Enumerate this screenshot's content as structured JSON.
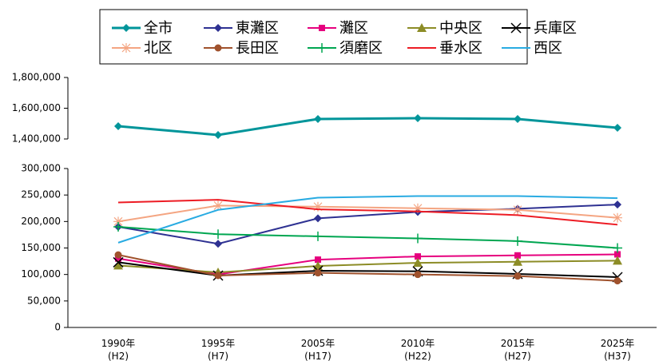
{
  "chart_data": [
    {
      "type": "line",
      "categories": [
        "1990年\n(H2)",
        "1995年\n(H7)",
        "2005年\n(H17)",
        "2010年\n(H22)",
        "2015年\n(H27)",
        "2025年\n(H37)"
      ],
      "ylim": [
        1400000,
        1800000
      ],
      "yticks": [
        {
          "value": 1400000,
          "label": "1,400,000"
        },
        {
          "value": 1600000,
          "label": "1,600,000"
        },
        {
          "value": 1800000,
          "label": "1,800,000"
        }
      ],
      "series": [
        {
          "name": "全市",
          "color": "#00959a",
          "marker": "diamond",
          "values": [
            1483000,
            1426000,
            1530000,
            1535000,
            1530000,
            1473000
          ]
        }
      ]
    },
    {
      "type": "line",
      "categories": [
        "1990年\n(H2)",
        "1995年\n(H7)",
        "2005年\n(H17)",
        "2010年\n(H22)",
        "2015年\n(H27)",
        "2025年\n(H37)"
      ],
      "ylim": [
        0,
        300000
      ],
      "yticks": [
        0,
        {
          "value": 50000,
          "label": "50,000"
        },
        {
          "value": 100000,
          "label": "100,000"
        },
        {
          "value": 150000,
          "label": "150,000"
        },
        {
          "value": 200000,
          "label": "200,000"
        },
        {
          "value": 250000,
          "label": "250,000"
        },
        {
          "value": 300000,
          "label": "300,000"
        }
      ],
      "series": [
        {
          "name": "東灘区",
          "color": "#2e3192",
          "marker": "diamond",
          "values": [
            190000,
            158000,
            206000,
            218000,
            224000,
            232000
          ]
        },
        {
          "name": "灘区",
          "color": "#e6007e",
          "marker": "square",
          "values": [
            130000,
            100000,
            128000,
            134000,
            136000,
            138000
          ]
        },
        {
          "name": "中央区",
          "color": "#8c8c26",
          "marker": "triangle",
          "values": [
            117000,
            104000,
            116000,
            122000,
            124000,
            126000
          ]
        },
        {
          "name": "兵庫区",
          "color": "#000000",
          "marker": "x",
          "values": [
            123000,
            98000,
            107000,
            106000,
            101000,
            95000
          ]
        },
        {
          "name": "北区",
          "color": "#f4a582",
          "marker": "asterisk",
          "values": [
            200000,
            230000,
            228000,
            225000,
            222000,
            207000
          ]
        },
        {
          "name": "長田区",
          "color": "#a0522d",
          "marker": "circle",
          "values": [
            137000,
            98000,
            103000,
            100000,
            97000,
            88000
          ]
        },
        {
          "name": "須磨区",
          "color": "#00a651",
          "marker": "plus",
          "values": [
            190000,
            176000,
            172000,
            168000,
            163000,
            150000
          ]
        },
        {
          "name": "垂水区",
          "color": "#ed1c24",
          "marker": "none",
          "values": [
            236000,
            241000,
            223000,
            219000,
            212000,
            194000
          ]
        },
        {
          "name": "西区",
          "color": "#29abe2",
          "marker": "none",
          "values": [
            160000,
            222000,
            245000,
            248000,
            248000,
            244000
          ]
        }
      ]
    }
  ]
}
